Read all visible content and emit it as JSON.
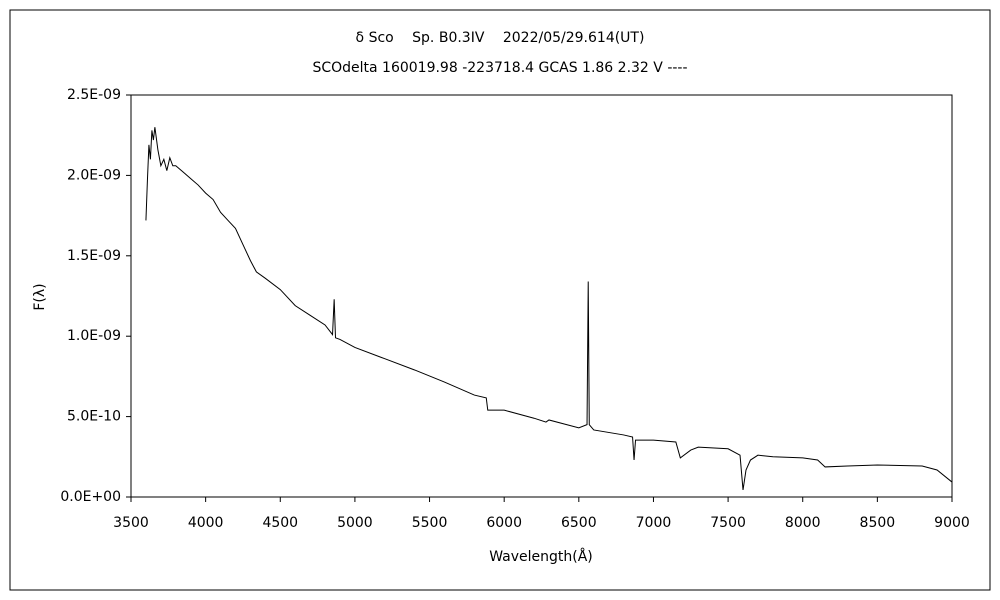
{
  "chart_data": {
    "type": "line",
    "title": "δ Sco　 Sp. B0.3IV　 2022/05/29.614(UT)",
    "subtitle": "SCOdelta 160019.98 -223718.4 GCAS 1.86 2.32 V ----",
    "xlabel": "Wavelength(Å)",
    "ylabel": "F(λ)",
    "xlim": [
      3500,
      9000
    ],
    "xticks": [
      3500,
      4000,
      4500,
      5000,
      5500,
      6000,
      6500,
      7000,
      7500,
      8000,
      8500,
      9000
    ],
    "ylim": [
      0,
      2.5e-09
    ],
    "yticks": [
      {
        "value": 0,
        "label": "0.0E+00"
      },
      {
        "value": 5e-10,
        "label": "5.0E-10"
      },
      {
        "value": 1e-09,
        "label": "1.0E-09"
      },
      {
        "value": 1.5e-09,
        "label": "1.5E-09"
      },
      {
        "value": 2e-09,
        "label": "2.0E-09"
      },
      {
        "value": 2.5e-09,
        "label": "2.5E-09"
      }
    ],
    "grid": false,
    "series": [
      {
        "color": "#000000",
        "x": [
          3600,
          3610,
          3620,
          3630,
          3640,
          3650,
          3660,
          3680,
          3700,
          3720,
          3740,
          3760,
          3780,
          3800,
          3850,
          3900,
          3950,
          4000,
          4050,
          4100,
          4150,
          4200,
          4250,
          4300,
          4340,
          4400,
          4500,
          4600,
          4700,
          4800,
          4850,
          4861,
          4870,
          4900,
          5000,
          5200,
          5400,
          5600,
          5800,
          5880,
          5890,
          6000,
          6200,
          6280,
          6300,
          6500,
          6555,
          6563,
          6570,
          6600,
          6800,
          6860,
          6870,
          6880,
          7000,
          7150,
          7180,
          7250,
          7300,
          7500,
          7580,
          7600,
          7620,
          7650,
          7700,
          7800,
          8000,
          8100,
          8150,
          8300,
          8500,
          8800,
          8900,
          9000
        ],
        "values": [
          1.72e-09,
          1.97e-09,
          2.19e-09,
          2.1e-09,
          2.28e-09,
          2.22e-09,
          2.3e-09,
          2.16e-09,
          2.06e-09,
          2.1e-09,
          2.03e-09,
          2.11e-09,
          2.06e-09,
          2.06e-09,
          2.02e-09,
          1.98e-09,
          1.94e-09,
          1.89e-09,
          1.85e-09,
          1.77e-09,
          1.72e-09,
          1.67e-09,
          1.57e-09,
          1.47e-09,
          1.4e-09,
          1.36e-09,
          1.29e-09,
          1.19e-09,
          1.13e-09,
          1.07e-09,
          1.01e-09,
          1.23e-09,
          9.9e-10,
          9.8e-10,
          9.3e-10,
          8.6e-10,
          7.9e-10,
          7.15e-10,
          6.34e-10,
          6.16e-10,
          5.4e-10,
          5.4e-10,
          4.9e-10,
          4.66e-10,
          4.79e-10,
          4.3e-10,
          4.5e-10,
          1.34e-09,
          4.5e-10,
          4.17e-10,
          3.86e-10,
          3.73e-10,
          2.3e-10,
          3.54e-10,
          3.54e-10,
          3.42e-10,
          2.43e-10,
          2.92e-10,
          3.1e-10,
          3e-10,
          2.6e-10,
          4.4e-11,
          1.68e-10,
          2.3e-10,
          2.6e-10,
          2.5e-10,
          2.43e-10,
          2.3e-10,
          1.87e-10,
          1.93e-10,
          1.99e-10,
          1.93e-10,
          1.68e-10,
          9.3e-11
        ]
      }
    ]
  }
}
